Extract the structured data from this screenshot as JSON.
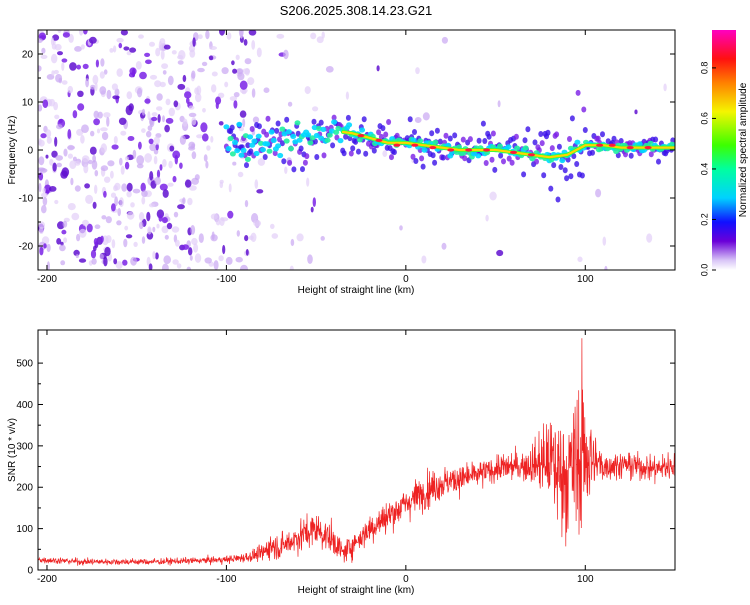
{
  "chart_data": [
    {
      "type": "heatmap",
      "title": "S206.2025.308.14.23.G21",
      "xlabel": "Height of straight line (km)",
      "ylabel": "Frequency (Hz)",
      "xlim": [
        -205,
        150
      ],
      "ylim": [
        -25,
        25
      ],
      "xticks": [
        -200,
        -100,
        0,
        100
      ],
      "xtick_labels": [
        "-200",
        "-100",
        "0",
        "100"
      ],
      "yticks": [
        -20,
        -10,
        0,
        10,
        20
      ],
      "ytick_labels": [
        "-20",
        "-10",
        "0",
        "10",
        "20"
      ],
      "colorbar": {
        "label": "Normalized spectral amplitude",
        "range": [
          0,
          0.95
        ],
        "ticks": [
          0.0,
          0.2,
          0.4,
          0.6,
          0.8
        ],
        "tick_labels": [
          "0.0",
          "0.2",
          "0.4",
          "0.6",
          "0.8"
        ]
      },
      "ridge_frequency": {
        "x": [
          -100,
          -90,
          -80,
          -70,
          -60,
          -50,
          -40,
          -30,
          -20,
          -10,
          0,
          10,
          20,
          30,
          40,
          50,
          60,
          70,
          80,
          90,
          100,
          110,
          120,
          130,
          140,
          150
        ],
        "y": [
          2,
          1.5,
          1.5,
          2,
          2.5,
          3,
          4,
          3.5,
          2.5,
          1.5,
          1.5,
          1,
          0.5,
          0,
          0,
          0,
          -0.5,
          -1,
          -1.5,
          -1,
          1,
          1,
          0.5,
          0.5,
          0.5,
          0.5
        ]
      }
    },
    {
      "type": "line",
      "xlabel": "Height of straight line (km)",
      "ylabel": "SNR (10 * v/v)",
      "xlim": [
        -205,
        150
      ],
      "ylim": [
        0,
        580
      ],
      "xticks": [
        -200,
        -100,
        0,
        100
      ],
      "xtick_labels": [
        "-200",
        "-100",
        "0",
        "100"
      ],
      "yticks": [
        0,
        100,
        200,
        300,
        400,
        500
      ],
      "ytick_labels": [
        "0",
        "100",
        "200",
        "300",
        "400",
        "500"
      ],
      "series": [
        {
          "name": "SNR",
          "color": "#ee2222",
          "x": [
            -205,
            -190,
            -180,
            -160,
            -140,
            -120,
            -100,
            -90,
            -80,
            -75,
            -70,
            -60,
            -50,
            -40,
            -35,
            -30,
            -20,
            -10,
            0,
            10,
            20,
            30,
            40,
            50,
            60,
            70,
            80,
            85,
            90,
            95,
            100,
            105,
            110,
            120,
            130,
            140,
            150
          ],
          "y": [
            25,
            22,
            20,
            20,
            20,
            22,
            25,
            30,
            40,
            60,
            55,
            80,
            100,
            70,
            40,
            60,
            100,
            130,
            160,
            190,
            210,
            220,
            230,
            245,
            250,
            255,
            265,
            240,
            230,
            260,
            280,
            260,
            250,
            255,
            250,
            245,
            255
          ],
          "spread": [
            10,
            10,
            10,
            10,
            10,
            10,
            12,
            15,
            25,
            40,
            40,
            50,
            55,
            45,
            30,
            40,
            45,
            50,
            50,
            55,
            50,
            45,
            40,
            40,
            45,
            60,
            130,
            180,
            190,
            220,
            200,
            110,
            45,
            40,
            40,
            40,
            50
          ]
        }
      ]
    }
  ],
  "colors": {
    "snr_line": "#ee2222",
    "axis": "#000000"
  }
}
